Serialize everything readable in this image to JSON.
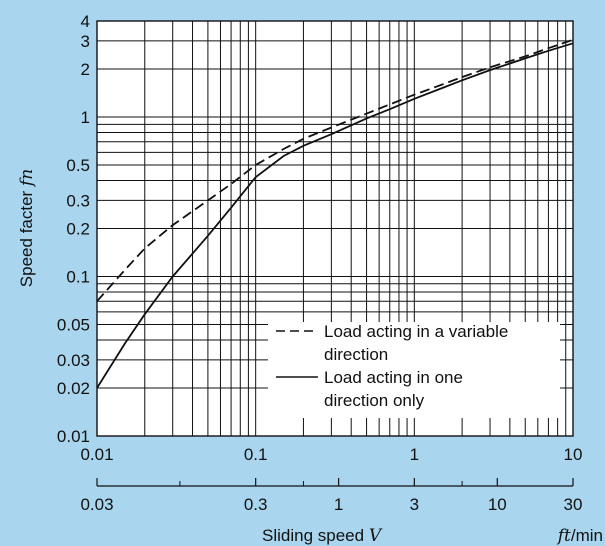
{
  "chart_data": {
    "type": "line",
    "title": "",
    "xscale": "log",
    "yscale": "log",
    "xlim": [
      0.01,
      10
    ],
    "ylim": [
      0.01,
      4
    ],
    "grid": true,
    "xlabel": {
      "text": "Sliding speed ",
      "var": "V"
    },
    "xunit": {
      "var": "ft",
      "text": "/min"
    },
    "ylabel": {
      "text": "Speed facter ",
      "var": "fn"
    },
    "x_ticks": [
      "0.01",
      "0.1",
      "1",
      "10"
    ],
    "x_ticks_values": [
      0.01,
      0.1,
      1,
      10
    ],
    "x2_ticks": [
      "0.03",
      "0.3",
      "1",
      "3",
      "10",
      "30"
    ],
    "x2_ticks_positions": [
      0.01,
      0.1,
      0.3333,
      1,
      3.333,
      10
    ],
    "y_ticks": [
      "0.01",
      "0.02",
      "0.03",
      "0.05",
      "0.1",
      "0.2",
      "0.3",
      "0.5",
      "1",
      "2",
      "3",
      "4"
    ],
    "y_ticks_values": [
      0.01,
      0.02,
      0.03,
      0.05,
      0.1,
      0.2,
      0.3,
      0.5,
      1,
      2,
      3,
      4
    ],
    "legend": {
      "position": "bottom-right"
    },
    "series": [
      {
        "name": "Load acting in a variable direction",
        "style": "dashed",
        "x": [
          0.01,
          0.015,
          0.02,
          0.03,
          0.05,
          0.07,
          0.1,
          0.15,
          0.2,
          0.3,
          0.5,
          0.7,
          1,
          1.5,
          2,
          3,
          5,
          7,
          10
        ],
        "y": [
          0.07,
          0.11,
          0.15,
          0.21,
          0.3,
          0.38,
          0.5,
          0.63,
          0.73,
          0.86,
          1.05,
          1.2,
          1.38,
          1.6,
          1.78,
          2.05,
          2.4,
          2.7,
          3.05
        ]
      },
      {
        "name": "Load acting in one direction only",
        "style": "solid",
        "x": [
          0.01,
          0.015,
          0.02,
          0.03,
          0.05,
          0.07,
          0.1,
          0.15,
          0.2,
          0.3,
          0.5,
          0.7,
          1,
          1.5,
          2,
          3,
          5,
          7,
          10
        ],
        "y": [
          0.02,
          0.038,
          0.058,
          0.1,
          0.18,
          0.27,
          0.42,
          0.57,
          0.66,
          0.78,
          0.98,
          1.12,
          1.3,
          1.52,
          1.7,
          1.97,
          2.33,
          2.6,
          2.9
        ]
      }
    ],
    "legend_lines": [
      [
        "Load acting in a variable",
        "direction"
      ],
      [
        "Load acting in one",
        "direction only"
      ]
    ]
  },
  "colors": {
    "background": "#a9d6ee",
    "plot_area": "#ffffff",
    "ink": "#111111"
  }
}
